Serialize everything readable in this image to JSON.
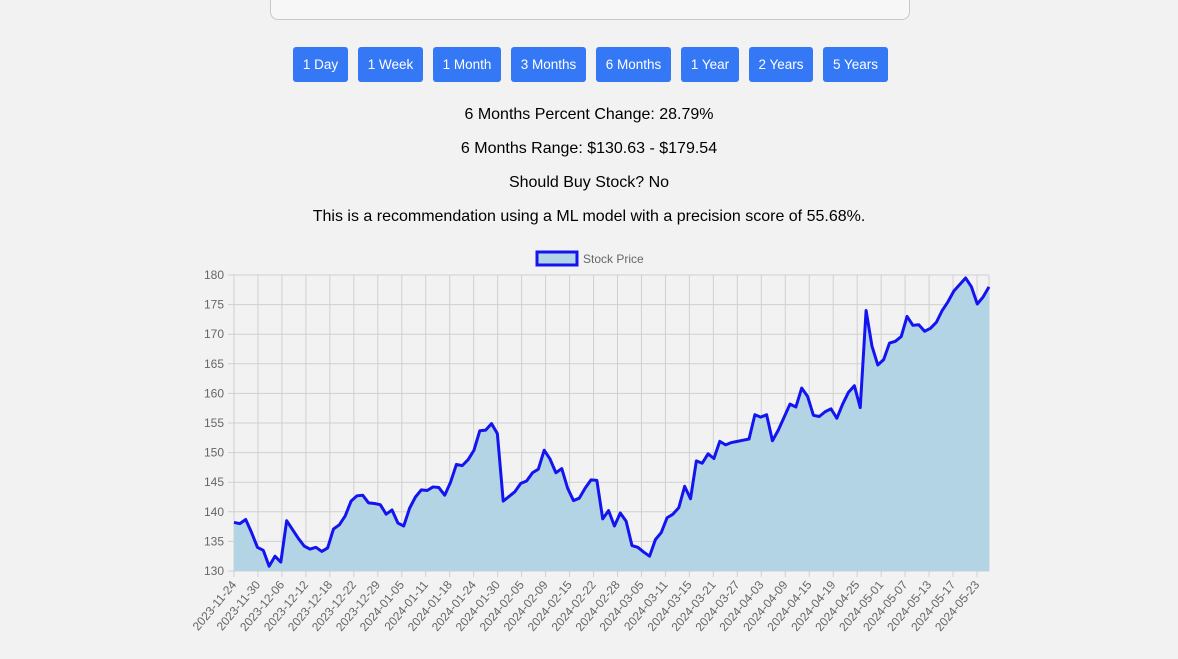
{
  "search": {
    "value": ""
  },
  "range_buttons": [
    {
      "label": "1 Day"
    },
    {
      "label": "1 Week"
    },
    {
      "label": "1 Month"
    },
    {
      "label": "3 Months"
    },
    {
      "label": "6 Months"
    },
    {
      "label": "1 Year"
    },
    {
      "label": "2 Years"
    },
    {
      "label": "5 Years"
    }
  ],
  "summary": {
    "percent_change": "6 Months Percent Change: 28.79%",
    "range": "6 Months Range: $130.63 - $179.54",
    "should_buy": "Should Buy Stock? No",
    "recommendation": "This is a recommendation using a ML model with a precision score of 55.68%."
  },
  "colors": {
    "button": "#3478f6",
    "line": "#1414f0",
    "fill": "#b2d4e5",
    "grid": "#d0d0d0",
    "background": "#f2f2f2"
  },
  "chart_data": {
    "type": "area",
    "legend": "Stock Price",
    "legend_position": "top-center",
    "grid": true,
    "ylim": [
      130,
      180
    ],
    "y_ticks": [
      130,
      135,
      140,
      145,
      150,
      155,
      160,
      165,
      170,
      175,
      180
    ],
    "x_tick_labels": [
      "2023-11-24",
      "2023-11-30",
      "2023-12-06",
      "2023-12-12",
      "2023-12-18",
      "2023-12-22",
      "2023-12-29",
      "2024-01-05",
      "2024-01-11",
      "2024-01-18",
      "2024-01-24",
      "2024-01-30",
      "2024-02-05",
      "2024-02-09",
      "2024-02-15",
      "2024-02-22",
      "2024-02-28",
      "2024-03-05",
      "2024-03-11",
      "2024-03-15",
      "2024-03-21",
      "2024-03-27",
      "2024-04-03",
      "2024-04-09",
      "2024-04-15",
      "2024-04-19",
      "2024-04-25",
      "2024-05-01",
      "2024-05-07",
      "2024-05-13",
      "2024-05-17",
      "2024-05-23"
    ],
    "series": [
      {
        "name": "Stock Price",
        "values": [
          138.2,
          138.0,
          138.7,
          136.5,
          134.0,
          133.5,
          130.8,
          132.5,
          131.5,
          138.5,
          137.0,
          135.5,
          134.2,
          133.7,
          134.0,
          133.3,
          133.9,
          137.1,
          137.8,
          139.3,
          141.8,
          142.7,
          142.8,
          141.5,
          141.4,
          141.2,
          139.6,
          140.3,
          138.1,
          137.6,
          140.6,
          142.5,
          143.7,
          143.6,
          144.2,
          144.1,
          142.8,
          145.0,
          148.0,
          147.8,
          148.8,
          150.4,
          153.7,
          153.8,
          154.9,
          153.2,
          141.8,
          142.6,
          143.4,
          144.8,
          145.2,
          146.6,
          147.2,
          150.4,
          148.9,
          146.6,
          147.3,
          144.0,
          141.9,
          142.3,
          144.0,
          145.4,
          145.3,
          138.8,
          140.2,
          137.6,
          139.8,
          138.4,
          134.3,
          134.0,
          133.2,
          132.5,
          135.3,
          136.5,
          139.0,
          139.6,
          140.7,
          144.3,
          142.2,
          148.6,
          148.2,
          149.8,
          149.0,
          151.9,
          151.3,
          151.7,
          151.9,
          152.1,
          152.3,
          156.4,
          156.0,
          156.4,
          152.0,
          153.8,
          156.0,
          158.2,
          157.7,
          160.9,
          159.5,
          156.3,
          156.1,
          156.9,
          157.4,
          155.8,
          158.2,
          160.2,
          161.3,
          157.6,
          174.0,
          168.0,
          164.8,
          165.7,
          168.5,
          168.8,
          169.6,
          173.0,
          171.5,
          171.6,
          170.5,
          171.0,
          172.0,
          174.0,
          175.5,
          177.3,
          178.4,
          179.5,
          178.0,
          175.1,
          176.3,
          178.0
        ]
      }
    ]
  }
}
